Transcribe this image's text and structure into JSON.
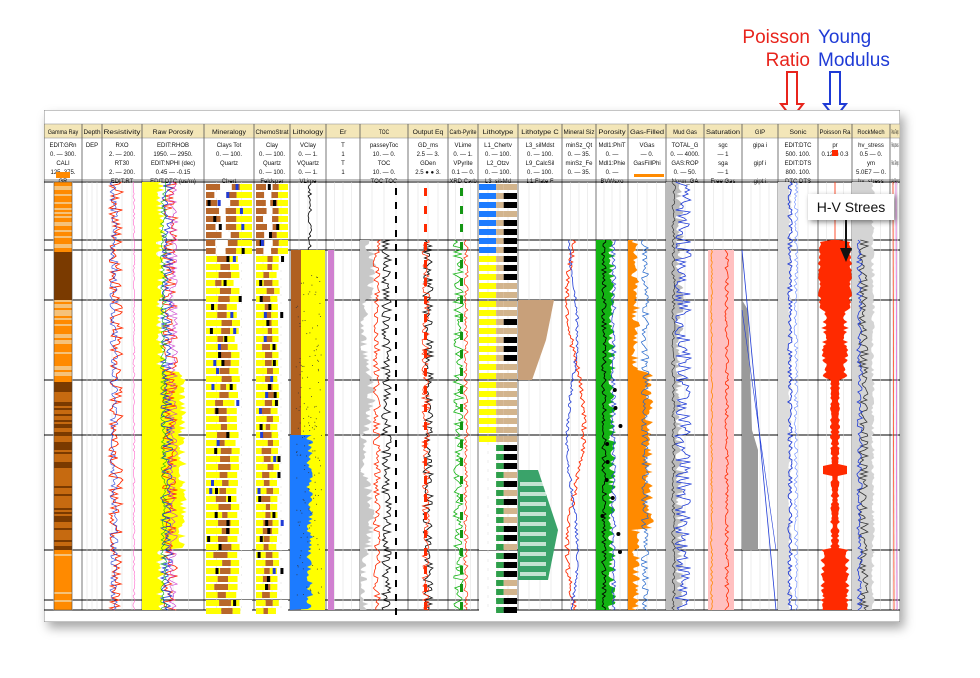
{
  "callouts": {
    "poisson": [
      "Poisson",
      "Ratio"
    ],
    "young": [
      "Young",
      "Modulus"
    ],
    "hv": "H-V Strees"
  },
  "colors": {
    "header_bg": "#f3e6b8",
    "red": "#ff2a00",
    "blue": "#1f3bd6",
    "green": "#14b414",
    "yellow": "#ffff00",
    "orange": "#ff8a00",
    "brown": "#b8672a",
    "pink": "#ffc0c0",
    "gr_dark": "#7a3a00",
    "gr_light": "#f5c27a"
  },
  "tracks": [
    {
      "title": "Gamma Ray",
      "header": [
        "EDIT:GRn",
        "0.  —  300.",
        "CALI",
        "125.  375.",
        "GR"
      ]
    },
    {
      "title": "Depth",
      "header": [
        "DEP",
        "",
        "",
        "",
        ""
      ]
    },
    {
      "title": "Resistivity",
      "header": [
        "RXO",
        "2. — 200.",
        "RT30",
        "2. — 200.",
        "EDIT:RT"
      ]
    },
    {
      "title": "Raw Porosity",
      "header": [
        "EDIT:RHOB",
        "1950.  —  2950.",
        "EDIT:NPHI (dec)",
        "0.45  —  -0.15",
        "EDIT:DTC (us/m)"
      ]
    },
    {
      "title": "Mineralogy",
      "header": [
        "Clays  Tot",
        "0. — 100.",
        "Quartz",
        "",
        "Chert"
      ]
    },
    {
      "title": "ChemoStrat",
      "header": [
        "Clay",
        "0. — 100.",
        "Quartz",
        "0. — 100.",
        "Feldspar"
      ]
    },
    {
      "title": "Lithology",
      "header": [
        "VClay",
        "0. — 1.",
        "VQuartz",
        "0. — 1.",
        "VLime"
      ]
    },
    {
      "title": "Er",
      "header": [
        "T",
        "1",
        "T",
        "1",
        ""
      ]
    },
    {
      "title": "TOC",
      "header": [
        "passeyToc",
        "10. — 0.",
        "TOC",
        "10. — 0.",
        "TOC:TOC"
      ]
    },
    {
      "title": "Output Eq",
      "header": [
        "GD_ms",
        "2.5 — 3.",
        "GDen",
        "2.5 ● ● 3.",
        ""
      ]
    },
    {
      "title": "Carb-Pyrite",
      "header": [
        "VLime",
        "0. — 1.",
        "VPyrite",
        "0.1 — 0.",
        "XRD:Carb"
      ]
    },
    {
      "title": "Lithotype",
      "header": [
        "L1_Chertv",
        "0. — 100.",
        "L2_Otzv",
        "0. — 100.",
        "L3_sil-Md"
      ]
    },
    {
      "title": "Lithotype C",
      "header": [
        "L3_silMdst",
        "0. — 100.",
        "L9_CalcSil",
        "0. — 100.",
        "L1:Flate F"
      ]
    },
    {
      "title": "Mineral Siz",
      "header": [
        "minSz_Qt",
        "0. — 35.",
        "minSz_Fe",
        "0. — 35.",
        ""
      ]
    },
    {
      "title": "Porosity",
      "header": [
        "Mdl1:PhiT",
        "0. — ",
        "Mdl1:Phie",
        "0. — ",
        "BVWsxo"
      ]
    },
    {
      "title": "Gas-Filled",
      "header": [
        "VGas",
        "— 0.",
        "GasFillPhi",
        "",
        ""
      ]
    },
    {
      "title": "Mud Gas",
      "header": [
        "TOTAL_G",
        "0. — 4000.",
        "GAS:ROP",
        "0. — 50.",
        "Norm_GA"
      ]
    },
    {
      "title": "Saturation",
      "header": [
        "sgc",
        "— 1",
        "sga",
        "— 1",
        "Free Gas"
      ]
    },
    {
      "title": "GIP",
      "header": [
        "gipa  i",
        "",
        "gipf  i",
        "",
        "gipt  i"
      ]
    },
    {
      "title": "Sonic",
      "header": [
        "EDIT:DTC",
        "500. 100.",
        "EDIT:DTS",
        "800. 100.",
        "DTC DTS"
      ]
    },
    {
      "title": "Poisson Ra",
      "header": [
        "pr",
        "0.12 ■ 0.3",
        "",
        "",
        ""
      ]
    },
    {
      "title": "RockMech",
      "header": [
        "hv_stress",
        "0.5 — 0.",
        "ym",
        "5.0E7 — 0.",
        "hv_stress"
      ]
    },
    {
      "title": "Press-Temp",
      "header": [
        "Res:press",
        "",
        "Res:Temp",
        "",
        "AppTemp"
      ]
    }
  ]
}
